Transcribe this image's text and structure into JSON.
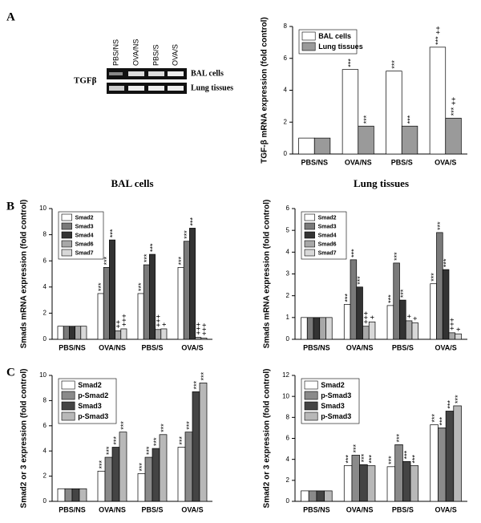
{
  "panel_labels": [
    "A",
    "B",
    "C"
  ],
  "gel": {
    "lanes": [
      "PBS/NS",
      "OVA/NS",
      "PBS/S",
      "OVA/S"
    ],
    "rows": [
      "BAL cells",
      "Lung tissues"
    ],
    "target": "TGFβ"
  },
  "chart_data": [
    {
      "type": "bar",
      "ylabel": "TGF-β mRNA expression (fold control)",
      "categories": [
        "PBS/NS",
        "OVA/NS",
        "PBS/S",
        "OVA/S"
      ],
      "ylim": [
        0,
        8
      ],
      "yticks": [
        0,
        2,
        4,
        6,
        8
      ],
      "legend": "top-left",
      "series": [
        {
          "name": "BAL cells",
          "color": "#ffffff",
          "values": [
            1.0,
            5.3,
            5.2,
            6.7
          ],
          "annotations": [
            null,
            "***",
            "***",
            "*** ++"
          ]
        },
        {
          "name": "Lung tissues",
          "color": "#9a9a9a",
          "values": [
            1.0,
            1.75,
            1.75,
            2.25
          ],
          "annotations": [
            null,
            "***",
            "***",
            "*** ++"
          ]
        }
      ]
    },
    {
      "type": "bar",
      "title": "BAL cells",
      "ylabel": "Smads mRNA expression (fold control)",
      "categories": [
        "PBS/NS",
        "OVA/NS",
        "PBS/S",
        "OVA/S"
      ],
      "ylim": [
        0,
        10
      ],
      "yticks": [
        0,
        2,
        4,
        6,
        8,
        10
      ],
      "legend": "top-left",
      "series": [
        {
          "name": "Smad2",
          "color": "#ffffff",
          "values": [
            1,
            3.5,
            3.5,
            5.5
          ],
          "annotations": [
            null,
            "***",
            "***",
            "***"
          ]
        },
        {
          "name": "Smad3",
          "color": "#7a7a7a",
          "values": [
            1,
            5.5,
            5.7,
            7.5
          ],
          "annotations": [
            null,
            "***",
            "***",
            "***"
          ]
        },
        {
          "name": "Smad4",
          "color": "#333333",
          "values": [
            1,
            7.6,
            6.5,
            8.5
          ],
          "annotations": [
            null,
            "***",
            "***",
            "***"
          ]
        },
        {
          "name": "Smad6",
          "color": "#a8a8a8",
          "values": [
            1,
            0.65,
            0.75,
            0.15
          ],
          "annotations": [
            null,
            "++",
            "+++",
            "+++"
          ]
        },
        {
          "name": "Smad7",
          "color": "#d8d8d8",
          "values": [
            1,
            0.8,
            0.8,
            0.1
          ],
          "annotations": [
            null,
            "+++",
            "+",
            "+++"
          ]
        }
      ]
    },
    {
      "type": "bar",
      "title": "Lung tissues",
      "ylabel": "Smads mRNA expression (fold control)",
      "categories": [
        "PBS/NS",
        "OVA/NS",
        "PBS/S",
        "OVA/S"
      ],
      "ylim": [
        0,
        6
      ],
      "yticks": [
        0,
        1,
        2,
        3,
        4,
        5,
        6
      ],
      "legend": "top-left",
      "series": [
        {
          "name": "Smad2",
          "color": "#ffffff",
          "values": [
            1,
            1.6,
            1.55,
            2.55
          ],
          "annotations": [
            null,
            "***",
            "***",
            "***"
          ]
        },
        {
          "name": "Smad3",
          "color": "#7a7a7a",
          "values": [
            1,
            3.65,
            3.5,
            4.9
          ],
          "annotations": [
            null,
            "***",
            "***",
            "***"
          ]
        },
        {
          "name": "Smad4",
          "color": "#333333",
          "values": [
            1,
            2.4,
            1.8,
            3.2
          ],
          "annotations": [
            null,
            "***",
            "***",
            "***"
          ]
        },
        {
          "name": "Smad6",
          "color": "#a8a8a8",
          "values": [
            1,
            0.6,
            0.85,
            0.3
          ],
          "annotations": [
            null,
            "+++",
            "+",
            "+++"
          ]
        },
        {
          "name": "Smad7",
          "color": "#d8d8d8",
          "values": [
            1,
            0.8,
            0.75,
            0.25
          ],
          "annotations": [
            null,
            "+",
            "+",
            "+"
          ]
        }
      ]
    },
    {
      "type": "bar",
      "ylabel": "Smad2 or 3 expression (fold control)",
      "categories": [
        "PBS/NS",
        "OVA/NS",
        "PBS/S",
        "OVA/S"
      ],
      "ylim": [
        0,
        10
      ],
      "yticks": [
        0,
        2,
        4,
        6,
        8,
        10
      ],
      "legend": "top-left",
      "series": [
        {
          "name": "Smad2",
          "color": "#ffffff",
          "values": [
            1,
            2.4,
            2.2,
            4.3
          ],
          "annotations": [
            null,
            "***",
            "***",
            "***"
          ]
        },
        {
          "name": "p-Smad2",
          "color": "#8a8a8a",
          "values": [
            1,
            3.5,
            3.5,
            5.5
          ],
          "annotations": [
            null,
            "***",
            "***",
            "***"
          ]
        },
        {
          "name": "Smad3",
          "color": "#444444",
          "values": [
            1,
            4.3,
            4.2,
            8.7
          ],
          "annotations": [
            null,
            "***",
            "***",
            "***"
          ]
        },
        {
          "name": "p-Smad3",
          "color": "#b8b8b8",
          "values": [
            1,
            5.5,
            5.3,
            9.4
          ],
          "annotations": [
            null,
            "***",
            "***",
            "***"
          ]
        }
      ]
    },
    {
      "type": "bar",
      "ylabel": "Smad2 or 3 expression (fold control)",
      "categories": [
        "PBS/NS",
        "OVA/NS",
        "PBS/S",
        "OVA/S"
      ],
      "ylim": [
        0,
        12
      ],
      "yticks": [
        0,
        2,
        4,
        6,
        8,
        10,
        12
      ],
      "legend": "top-left",
      "series": [
        {
          "name": "Smad2",
          "color": "#ffffff",
          "values": [
            1,
            3.4,
            3.3,
            7.3
          ],
          "annotations": [
            null,
            "***",
            "***",
            "***"
          ]
        },
        {
          "name": "p-Smad3",
          "color": "#8a8a8a",
          "values": [
            1,
            4.4,
            5.4,
            7.0
          ],
          "annotations": [
            null,
            "***",
            "***",
            "***"
          ]
        },
        {
          "name": "Smad3",
          "color": "#444444",
          "values": [
            1,
            3.5,
            3.8,
            8.6
          ],
          "annotations": [
            null,
            "***",
            "***",
            "***"
          ]
        },
        {
          "name": "p-Smad3",
          "color": "#b8b8b8",
          "values": [
            1,
            3.4,
            3.4,
            9.1
          ],
          "annotations": [
            null,
            "***",
            "***",
            "***"
          ]
        }
      ]
    }
  ]
}
